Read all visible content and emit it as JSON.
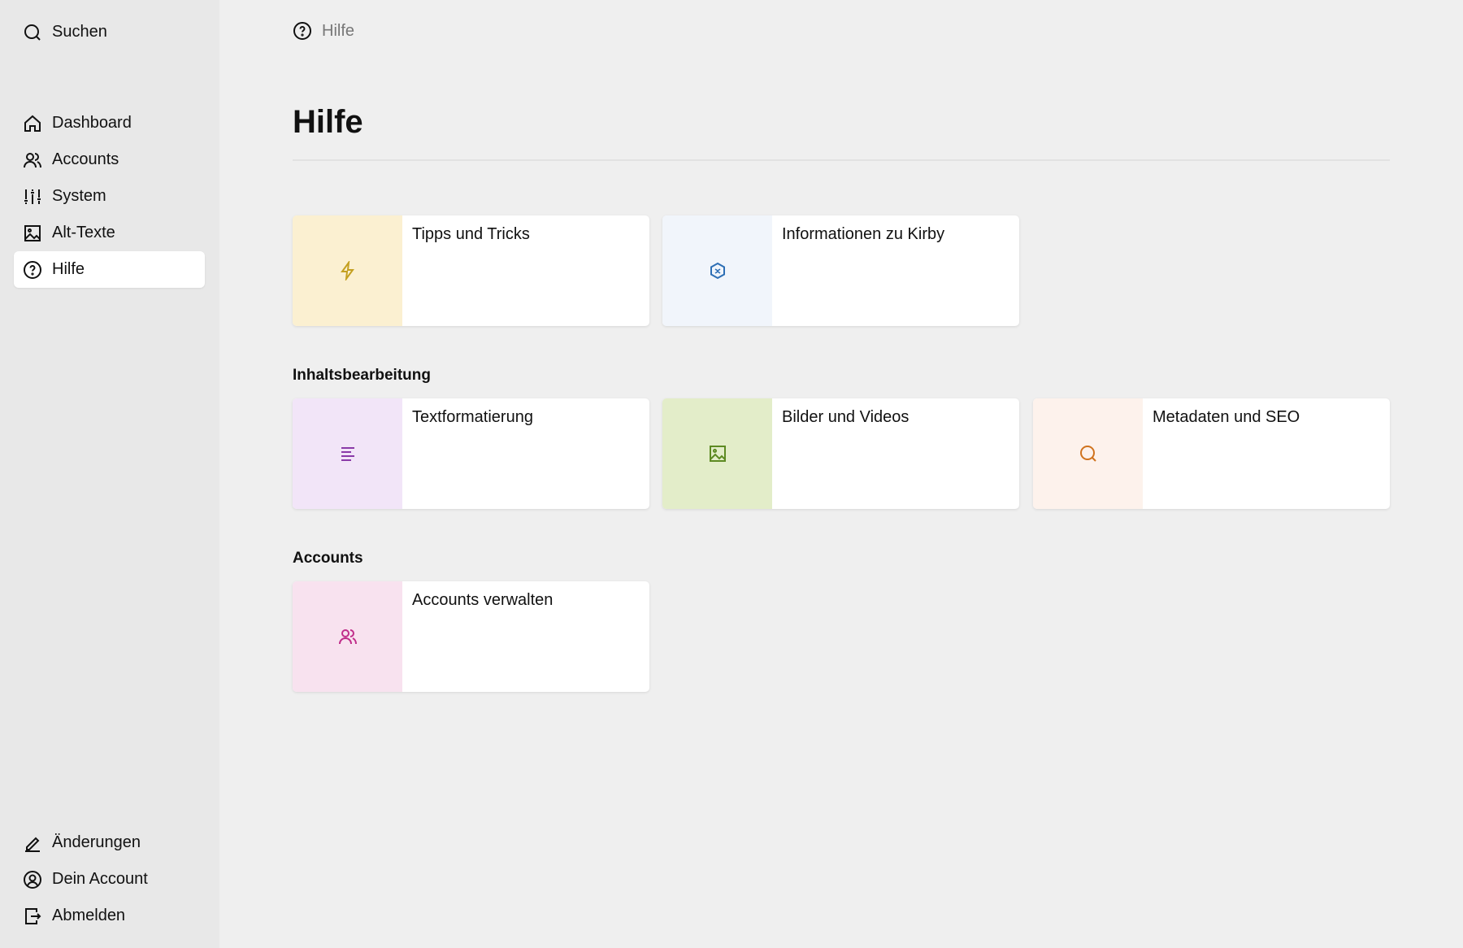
{
  "sidebar": {
    "search": "Suchen",
    "items": [
      {
        "label": "Dashboard",
        "icon": "home-icon"
      },
      {
        "label": "Accounts",
        "icon": "users-icon"
      },
      {
        "label": "System",
        "icon": "sliders-icon"
      },
      {
        "label": "Alt-Texte",
        "icon": "image-icon"
      },
      {
        "label": "Hilfe",
        "icon": "help-icon",
        "active": true
      }
    ],
    "bottom": [
      {
        "label": "Änderungen",
        "icon": "pen-icon"
      },
      {
        "label": "Dein Account",
        "icon": "user-circle-icon"
      },
      {
        "label": "Abmelden",
        "icon": "logout-icon"
      }
    ]
  },
  "breadcrumb": "Hilfe",
  "title": "Hilfe",
  "sections": [
    {
      "title": "",
      "cards": [
        {
          "label": "Tipps und Tricks",
          "icon": "bolt-icon",
          "color": "#c4a020",
          "bg": "#fbf0d1"
        },
        {
          "label": "Informationen zu Kirby",
          "icon": "kirby-icon",
          "color": "#2e6fb5",
          "bg": "#f1f5fb"
        }
      ]
    },
    {
      "title": "Inhaltsbearbeitung",
      "cards": [
        {
          "label": "Textformatierung",
          "icon": "text-icon",
          "color": "#8a3aa8",
          "bg": "#f2e5f8"
        },
        {
          "label": "Bilder und Videos",
          "icon": "image-icon",
          "color": "#5d8a22",
          "bg": "#e3edc9"
        },
        {
          "label": "Metadaten und SEO",
          "icon": "search-icon",
          "color": "#d0731e",
          "bg": "#fdf2ec"
        }
      ]
    },
    {
      "title": "Accounts",
      "cards": [
        {
          "label": "Accounts verwalten",
          "icon": "users-icon",
          "color": "#c02d8a",
          "bg": "#f8e2ef"
        }
      ]
    }
  ]
}
